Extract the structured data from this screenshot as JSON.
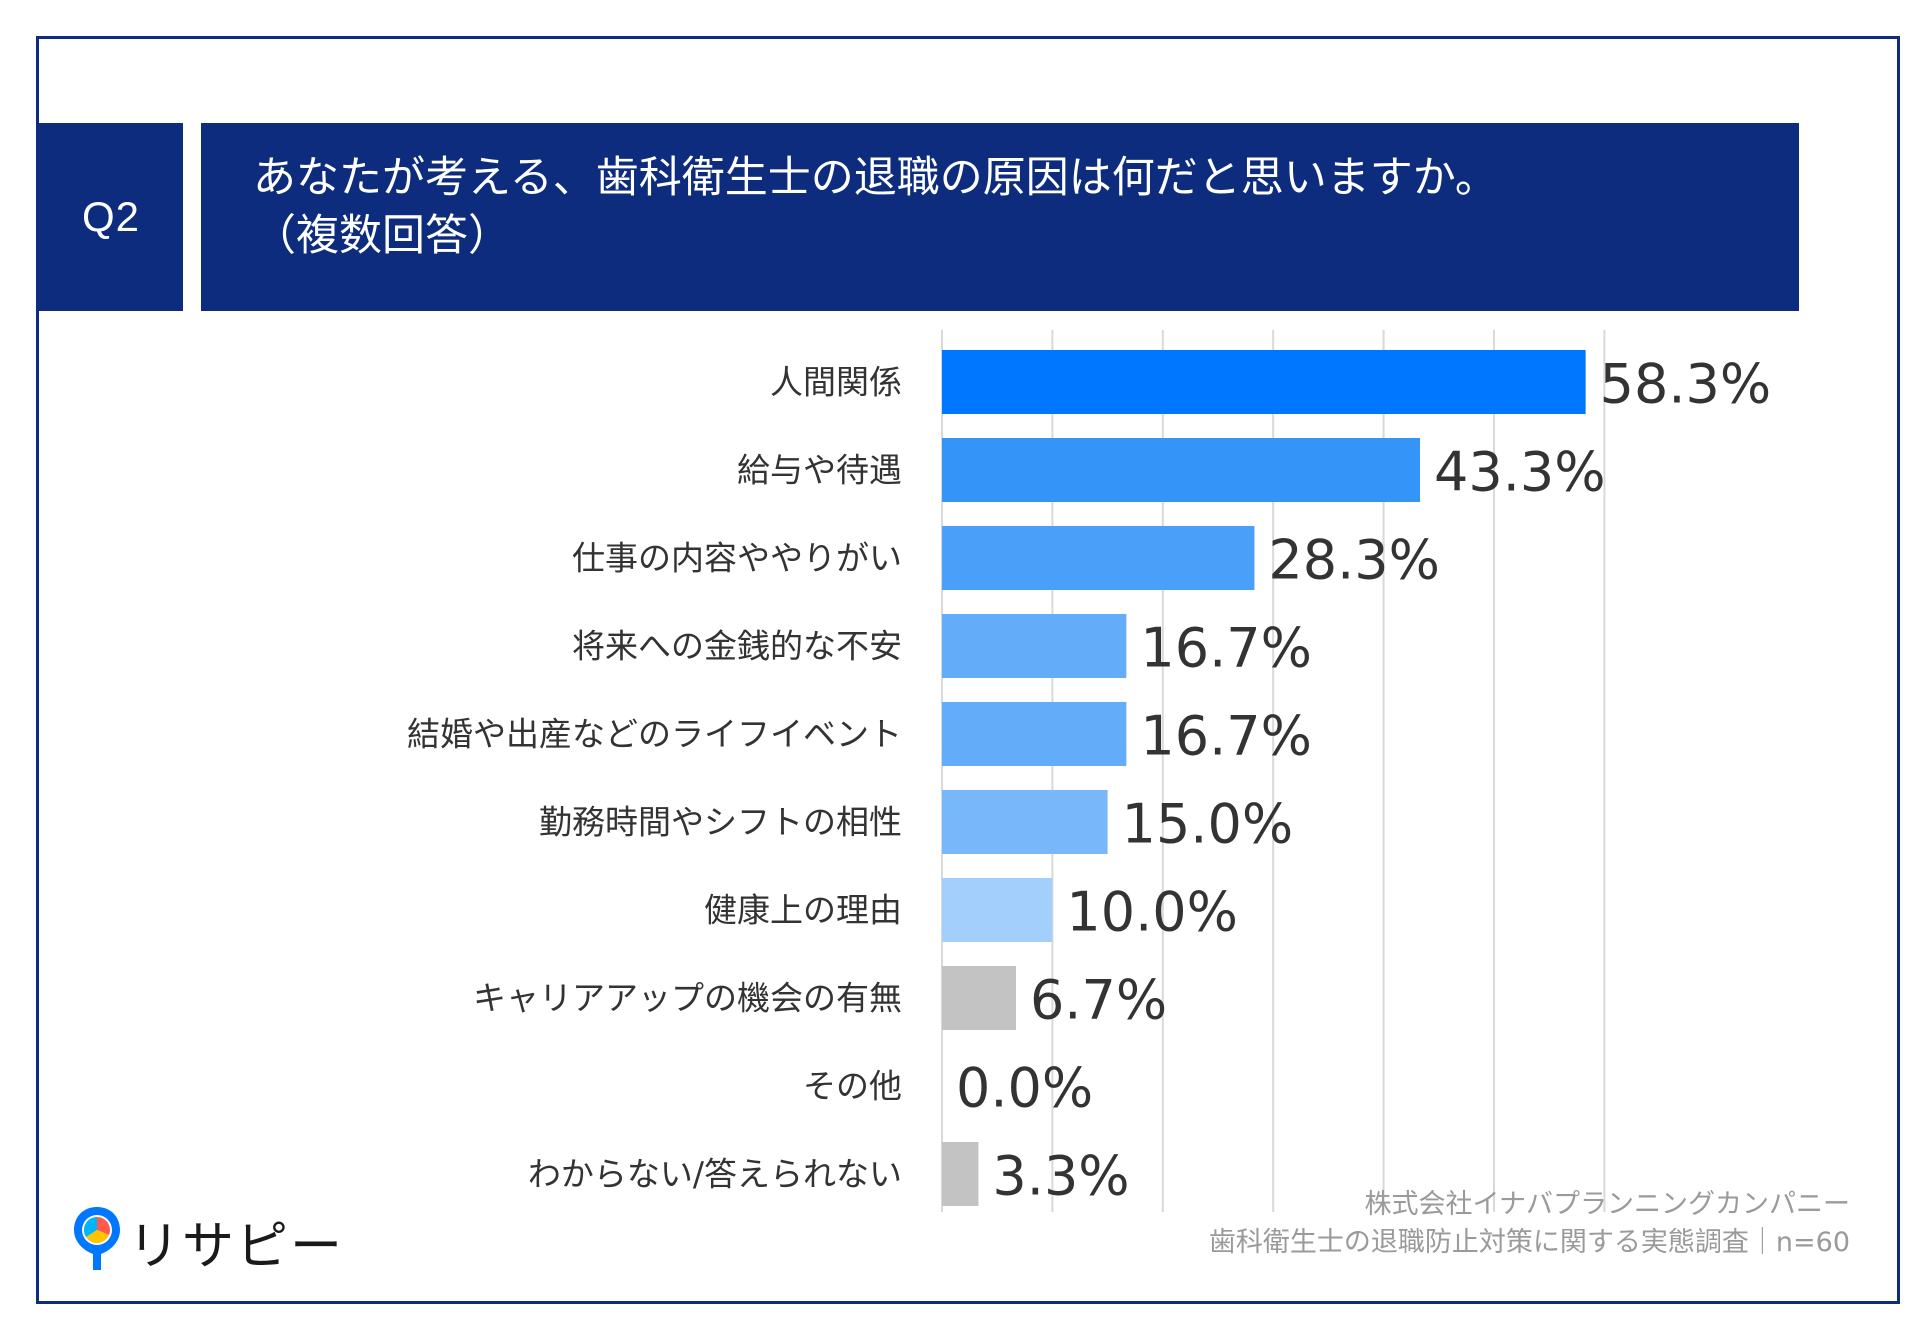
{
  "header": {
    "q_label": "Q2",
    "title_line1": "あなたが考える、歯科衛生士の退職の原因は何だと思いますか。",
    "title_line2": "（複数回答）"
  },
  "chart_data": {
    "type": "bar",
    "orientation": "horizontal",
    "title": "あなたが考える、歯科衛生士の退職の原因は何だと思いますか。（複数回答）",
    "categories": [
      "人間関係",
      "給与や待遇",
      "仕事の内容ややりがい",
      "将来への金銭的な不安",
      "結婚や出産などのライフイベント",
      "勤務時間やシフトの相性",
      "健康上の理由",
      "キャリアアップの機会の有無",
      "その他",
      "わからない/答えられない"
    ],
    "values": [
      58.3,
      43.3,
      28.3,
      16.7,
      16.7,
      15.0,
      10.0,
      6.7,
      0.0,
      3.3
    ],
    "value_labels": [
      "58.3%",
      "43.3%",
      "28.3%",
      "16.7%",
      "16.7%",
      "15.0%",
      "10.0%",
      "6.7%",
      "0.0%",
      "3.3%"
    ],
    "bar_colors": [
      "#0077ff",
      "#3594f8",
      "#4a9ff8",
      "#62acf9",
      "#62acf9",
      "#78b8fa",
      "#a2cffb",
      "#c3c3c3",
      "#c3c3c3",
      "#c3c3c3"
    ],
    "xlim": [
      0,
      60
    ],
    "grid": true,
    "legend": "none"
  },
  "footer": {
    "company": "株式会社イナバプランニングカンパニー",
    "survey": "歯科衛生士の退職防止対策に関する実態調査｜n=60"
  },
  "logo": {
    "text": "リサピー",
    "icon": "map-pin-logo-icon"
  },
  "colors": {
    "navy": "#0d2c7d",
    "grid": "#d9d9d9",
    "text": "#333333",
    "footer_text": "#9a9a9a"
  }
}
